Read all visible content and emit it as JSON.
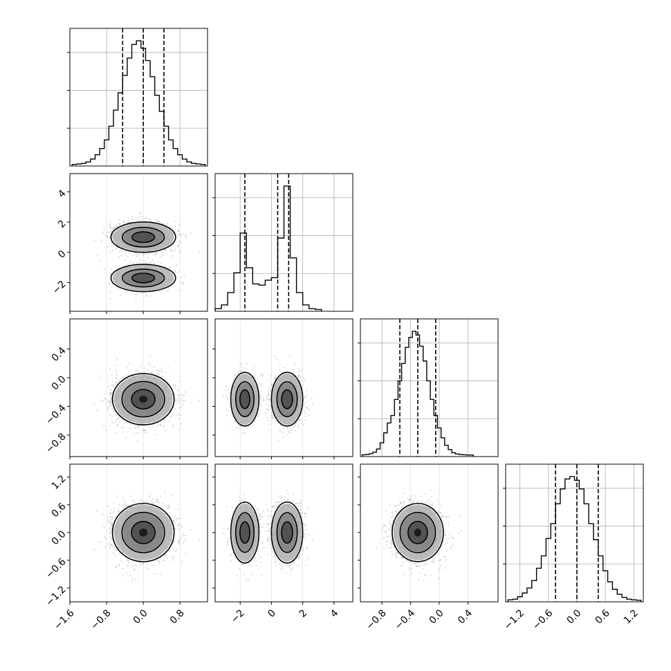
{
  "chart_data": {
    "type": "corner",
    "grid": true,
    "colors": {
      "line": "#000000",
      "grid": "#b0b0b0",
      "points": "#9a9a9a",
      "background": "#ffffff"
    },
    "parameters": [
      {
        "hist_range": [
          -1.6,
          1.4
        ],
        "bins": [
          -1.5,
          -1.4,
          -1.3,
          -1.2,
          -1.1,
          -1.0,
          -0.9,
          -0.8,
          -0.7,
          -0.6,
          -0.5,
          -0.4,
          -0.3,
          -0.2,
          -0.1,
          0.0,
          0.1,
          0.2,
          0.3,
          0.4,
          0.5,
          0.6,
          0.7,
          0.8,
          0.9,
          1.0,
          1.1,
          1.2,
          1.3
        ],
        "counts": [
          0.002,
          0.005,
          0.01,
          0.022,
          0.045,
          0.08,
          0.13,
          0.2,
          0.31,
          0.44,
          0.58,
          0.72,
          0.86,
          0.97,
          1.0,
          0.94,
          0.84,
          0.71,
          0.56,
          0.43,
          0.31,
          0.2,
          0.13,
          0.08,
          0.045,
          0.022,
          0.01,
          0.005,
          0.002
        ],
        "quantiles": [
          -0.45,
          0.0,
          0.45
        ],
        "ticks": [
          -1.6,
          -0.8,
          0.0,
          0.8
        ],
        "tick_labels": [
          "−1.6",
          "−0.8",
          "0.0",
          "0.8"
        ]
      },
      {
        "hist_range": [
          -3.6,
          5.2
        ],
        "bins": [
          -3.4,
          -3.0,
          -2.6,
          -2.2,
          -1.8,
          -1.4,
          -1.0,
          -0.6,
          -0.2,
          0.2,
          0.6,
          1.0,
          1.4,
          1.8,
          2.2,
          2.6,
          3.0
        ],
        "counts": [
          0.01,
          0.04,
          0.14,
          0.3,
          0.62,
          0.34,
          0.21,
          0.2,
          0.24,
          0.26,
          0.58,
          1.0,
          0.42,
          0.14,
          0.04,
          0.01,
          0.003
        ],
        "quantiles": [
          -1.7,
          0.4,
          1.1
        ],
        "ticks": [
          -2,
          0,
          2,
          4
        ],
        "tick_labels": [
          "−2",
          "0",
          "2",
          "4"
        ]
      },
      {
        "hist_range": [
          -1.1,
          0.82
        ],
        "bins": [
          -1.05,
          -1.0,
          -0.95,
          -0.9,
          -0.85,
          -0.8,
          -0.75,
          -0.7,
          -0.65,
          -0.6,
          -0.55,
          -0.5,
          -0.45,
          -0.4,
          -0.35,
          -0.3,
          -0.25,
          -0.2,
          -0.15,
          -0.1,
          -0.05,
          0.0,
          0.05,
          0.1,
          0.15,
          0.2,
          0.25,
          0.3,
          0.35,
          0.4,
          0.45
        ],
        "counts": [
          0.003,
          0.006,
          0.012,
          0.025,
          0.05,
          0.1,
          0.18,
          0.26,
          0.32,
          0.45,
          0.6,
          0.74,
          0.87,
          0.95,
          1.0,
          0.97,
          0.88,
          0.76,
          0.6,
          0.45,
          0.32,
          0.22,
          0.14,
          0.08,
          0.045,
          0.02,
          0.01,
          0.005,
          0.003,
          0.001,
          0.001
        ],
        "quantiles": [
          -0.55,
          -0.3,
          -0.05
        ],
        "ticks": [
          -0.8,
          -0.4,
          0.0,
          0.4
        ],
        "tick_labels": [
          "−0.8",
          "−0.4",
          "0.0",
          "0.4"
        ]
      },
      {
        "hist_range": [
          -1.5,
          1.4
        ],
        "bins": [
          -1.4,
          -1.3,
          -1.2,
          -1.1,
          -1.0,
          -0.9,
          -0.8,
          -0.7,
          -0.6,
          -0.5,
          -0.4,
          -0.3,
          -0.2,
          -0.1,
          0.0,
          0.1,
          0.2,
          0.3,
          0.4,
          0.5,
          0.6,
          0.7,
          0.8,
          0.9,
          1.0,
          1.1,
          1.2,
          1.3
        ],
        "counts": [
          0.005,
          0.01,
          0.03,
          0.06,
          0.1,
          0.16,
          0.26,
          0.36,
          0.5,
          0.62,
          0.78,
          0.9,
          0.98,
          1.0,
          0.97,
          0.9,
          0.78,
          0.62,
          0.49,
          0.36,
          0.24,
          0.15,
          0.09,
          0.05,
          0.025,
          0.01,
          0.005,
          0.002
        ],
        "quantiles": [
          -0.45,
          0.0,
          0.45
        ],
        "ticks": [
          -1.2,
          -0.6,
          0.0,
          0.6,
          1.2
        ],
        "tick_labels": [
          "−1.2",
          "−0.6",
          "0.0",
          "0.6",
          "1.2"
        ]
      }
    ],
    "y_axes": [
      {
        "row": 1,
        "range": [
          -3.9,
          5.2
        ],
        "ticks": [
          -2,
          0,
          2,
          4
        ],
        "tick_labels": [
          "−2",
          "0",
          "2",
          "4"
        ]
      },
      {
        "row": 2,
        "range": [
          -1.1,
          0.82
        ],
        "ticks": [
          -0.8,
          -0.4,
          0.0,
          0.4
        ],
        "tick_labels": [
          "−0.8",
          "−0.4",
          "0.0",
          "0.4"
        ]
      },
      {
        "row": 3,
        "range": [
          -1.5,
          1.48
        ],
        "ticks": [
          -1.2,
          -0.6,
          0.0,
          0.6,
          1.2
        ],
        "tick_labels": [
          "−1.2",
          "−0.6",
          "0.0",
          "0.6",
          "1.2"
        ]
      }
    ],
    "scatter_points_per_panel": 2000
  }
}
